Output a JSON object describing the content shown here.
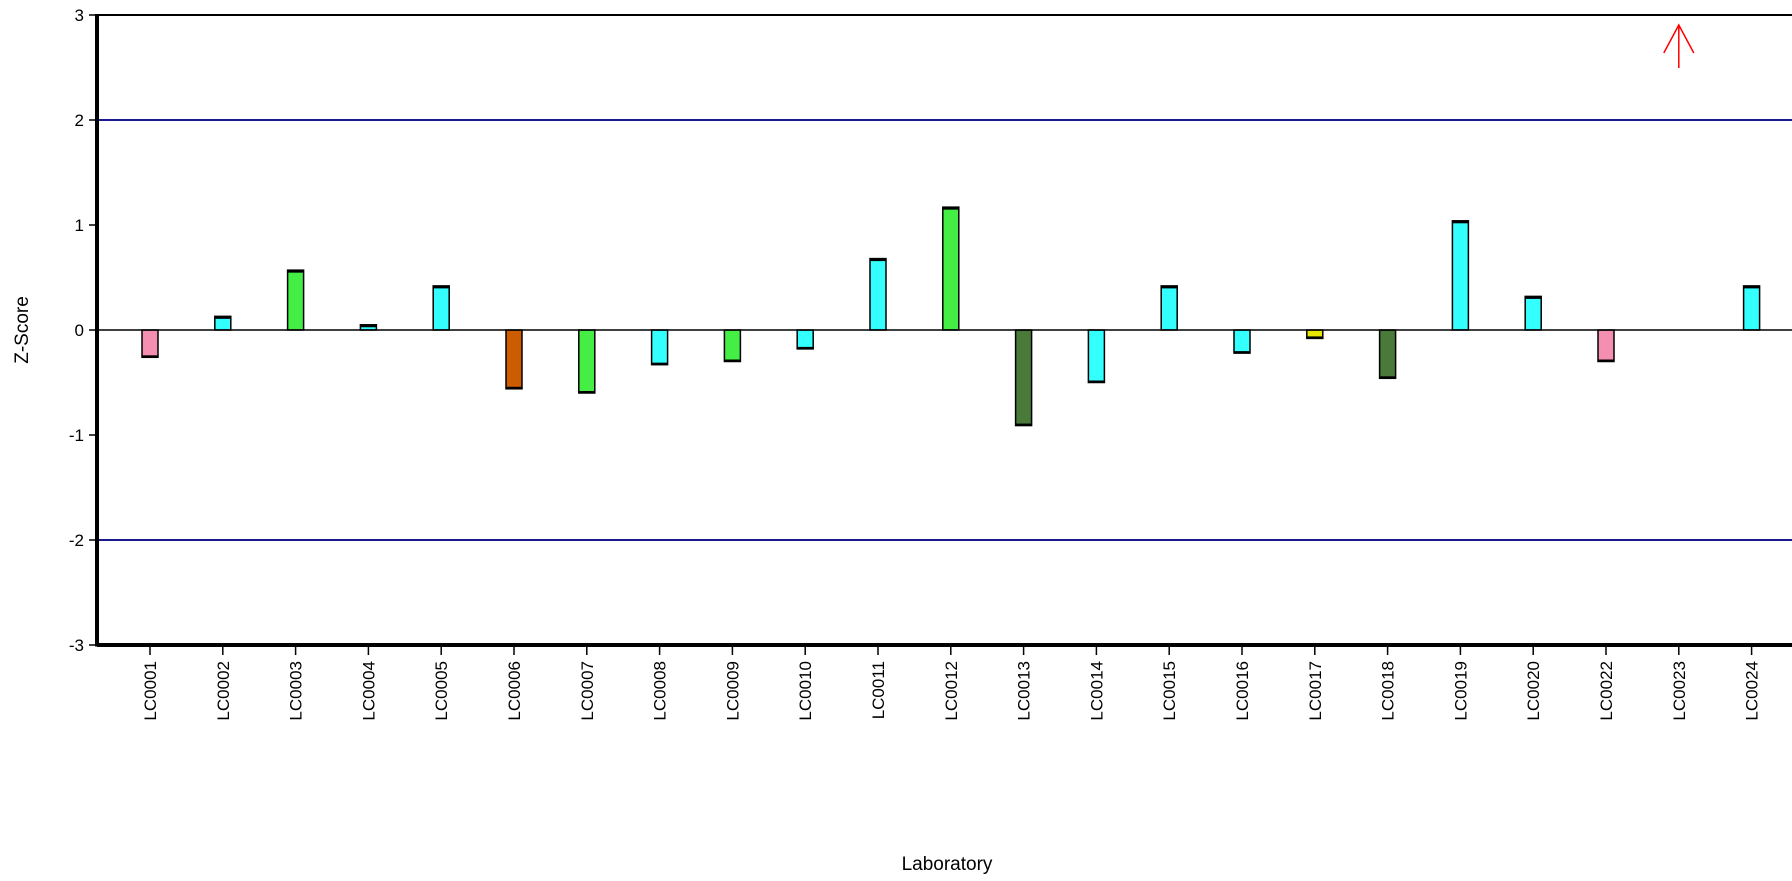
{
  "chart_data": {
    "type": "bar",
    "xlabel": "Laboratory",
    "ylabel": "Z-Score",
    "ylim": [
      -3,
      3
    ],
    "yticks": [
      -3,
      -2,
      -1,
      0,
      1,
      2,
      3
    ],
    "limit_lines": [
      2,
      -2
    ],
    "limit_line_color": "#1a1a8c",
    "categories": [
      "LC0001",
      "LC0002",
      "LC0003",
      "LC0004",
      "LC0005",
      "LC0006",
      "LC0007",
      "LC0008",
      "LC0009",
      "LC0010",
      "LC0011",
      "LC0012",
      "LC0013",
      "LC0014",
      "LC0015",
      "LC0016",
      "LC0017",
      "LC0018",
      "LC0019",
      "LC0020",
      "LC0022",
      "LC0023",
      "LC0024"
    ],
    "values": [
      -0.26,
      0.13,
      0.57,
      0.05,
      0.42,
      -0.56,
      -0.6,
      -0.33,
      -0.3,
      -0.18,
      0.68,
      1.17,
      -0.91,
      -0.5,
      0.42,
      -0.22,
      -0.08,
      -0.46,
      1.04,
      0.32,
      -0.3,
      null,
      0.42
    ],
    "bar_colors": [
      "#f48fb1",
      "#33ffff",
      "#44ee44",
      "#33ffff",
      "#33ffff",
      "#cc5c00",
      "#44ee44",
      "#33ffff",
      "#44ee44",
      "#33ffff",
      "#33ffff",
      "#44ee44",
      "#4a7a3a",
      "#33ffff",
      "#33ffff",
      "#33ffff",
      "#e6e600",
      "#4a7a3a",
      "#33ffff",
      "#33ffff",
      "#f48fb1",
      null,
      "#33ffff"
    ],
    "off_scale_marker": {
      "category": "LC0023",
      "direction": "up",
      "color": "#ff0000"
    }
  }
}
